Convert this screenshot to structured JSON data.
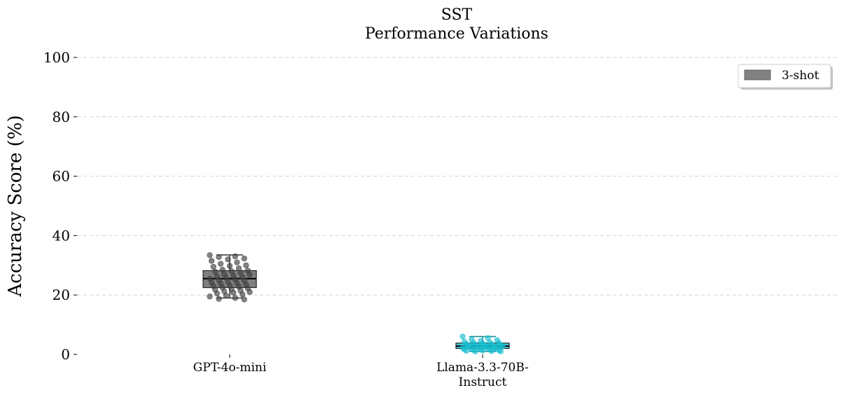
{
  "chart_data": {
    "type": "box",
    "title": "SST",
    "subtitle": "Performance Variations",
    "ylabel": "Accuracy Score (%)",
    "xlabel": "",
    "ylim": [
      0,
      100
    ],
    "yticks": [
      0,
      20,
      40,
      60,
      80,
      100
    ],
    "grid": true,
    "legend": {
      "placement": "top-right",
      "entries": [
        "3-shot"
      ],
      "color": "#808080"
    },
    "categories": [
      "GPT-4o-mini",
      "Llama-3.3-70B-\nInstruct"
    ],
    "category_lines": [
      [
        "GPT-4o-mini"
      ],
      [
        "Llama-3.3-70B-",
        "Instruct"
      ]
    ],
    "series": [
      {
        "category": "GPT-4o-mini",
        "color": "#606060",
        "point_color": "#404040",
        "box": {
          "whisker_low": 19.0,
          "q1": 22.5,
          "median": 25.5,
          "q3": 28.2,
          "whisker_high": 33.5
        },
        "points": [
          33.4,
          33.0,
          32.8,
          32.3,
          32.0,
          31.5,
          31.0,
          30.5,
          30.0,
          29.8,
          29.5,
          29.0,
          28.5,
          28.2,
          28.0,
          27.8,
          27.5,
          27.0,
          26.8,
          26.5,
          26.2,
          26.0,
          25.8,
          25.5,
          25.2,
          25.0,
          24.8,
          24.5,
          24.2,
          24.0,
          23.8,
          23.5,
          23.2,
          23.0,
          22.8,
          22.5,
          22.2,
          22.0,
          21.8,
          21.5,
          21.2,
          21.0,
          20.8,
          20.5,
          20.2,
          19.8,
          19.5,
          19.0,
          18.7,
          18.5
        ]
      },
      {
        "category": "Llama-3.3-70B-Instruct",
        "color": "#17becf",
        "point_color": "#17becf",
        "box": {
          "whisker_low": 1.0,
          "q1": 2.0,
          "median": 2.8,
          "q3": 3.8,
          "whisker_high": 6.0
        },
        "points": [
          6.0,
          5.5,
          5.0,
          4.8,
          4.5,
          4.2,
          4.0,
          3.9,
          3.8,
          3.7,
          3.5,
          3.4,
          3.3,
          3.2,
          3.1,
          3.0,
          2.9,
          2.8,
          2.7,
          2.6,
          2.5,
          2.4,
          2.3,
          2.2,
          2.1,
          2.0,
          1.9,
          1.8,
          1.7,
          1.6,
          1.5,
          1.4,
          1.3,
          1.2,
          1.1,
          1.0,
          1.0,
          2.5,
          3.0,
          2.0
        ]
      }
    ]
  }
}
